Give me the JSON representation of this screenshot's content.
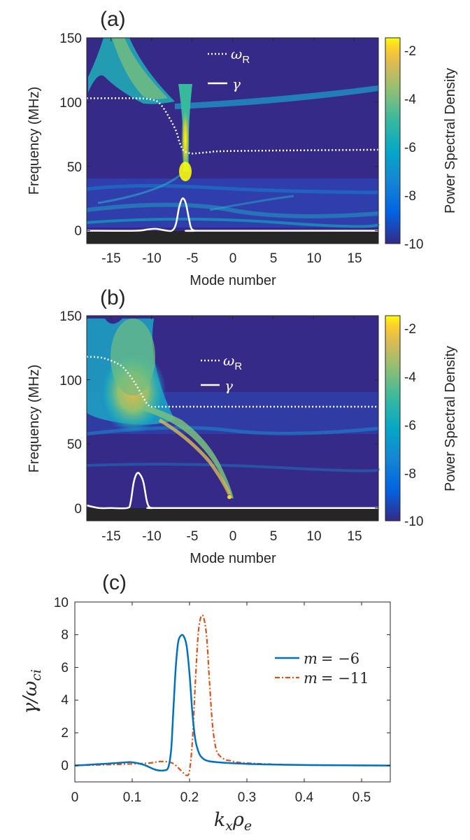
{
  "chart_data": [
    {
      "type": "heatmap",
      "panel_label": "(a)",
      "xlabel": "Mode number",
      "ylabel": "Frequency (MHz)",
      "xlim": [
        -18,
        18
      ],
      "ylim": [
        -10,
        150
      ],
      "xticks": [
        "-15",
        "-10",
        "-5",
        "0",
        "5",
        "10",
        "15"
      ],
      "yticks": [
        "0",
        "50",
        "100",
        "150"
      ],
      "colorbar": {
        "label": "Power Spectral Density",
        "range": [
          -10,
          -1.5
        ],
        "ticks": [
          "-2",
          "-4",
          "-6",
          "-8",
          "-10"
        ]
      },
      "legend": [
        {
          "name": "ω",
          "sub": "R",
          "style": "dotted"
        },
        {
          "name": "γ",
          "sub": "",
          "style": "solid"
        }
      ],
      "omega_R": {
        "x": [
          -18,
          -12,
          -10,
          -9,
          -8,
          -7,
          -6.5,
          -6,
          -5.5,
          -5,
          -3,
          0,
          18
        ],
        "y": [
          103,
          103,
          102,
          99,
          90,
          78,
          68,
          62,
          61,
          60,
          61,
          62,
          63
        ]
      },
      "gamma": {
        "x": [
          -18,
          -12,
          -10.5,
          -9.5,
          -8.5,
          -7.5,
          -7,
          -6.6,
          -6.2,
          -5.8,
          -5.4,
          -5.1,
          -4.6,
          -4,
          18
        ],
        "y": [
          0,
          0,
          1,
          1.5,
          0.5,
          0,
          5,
          18,
          25,
          22,
          10,
          2,
          0,
          0,
          0
        ]
      }
    },
    {
      "type": "heatmap",
      "panel_label": "(b)",
      "xlabel": "Mode number",
      "ylabel": "Frequency (MHz)",
      "xlim": [
        -18,
        18
      ],
      "ylim": [
        -10,
        150
      ],
      "xticks": [
        "-15",
        "-10",
        "-5",
        "0",
        "5",
        "10",
        "15"
      ],
      "yticks": [
        "0",
        "50",
        "100",
        "150"
      ],
      "colorbar": {
        "label": "Power Spectral Density",
        "range": [
          -10,
          -1.5
        ],
        "ticks": [
          "-2",
          "-4",
          "-6",
          "-8",
          "-10"
        ]
      },
      "legend": [
        {
          "name": "ω",
          "sub": "R",
          "style": "dotted"
        },
        {
          "name": "γ",
          "sub": "",
          "style": "solid"
        }
      ],
      "omega_R": {
        "x": [
          -18,
          -16,
          -14,
          -13,
          -12,
          -11,
          -10.5,
          -10,
          -9,
          -6,
          0,
          18
        ],
        "y": [
          118,
          117,
          112,
          106,
          97,
          86,
          81,
          79,
          79,
          79,
          79,
          79
        ]
      },
      "gamma": {
        "x": [
          -18,
          -16.5,
          -15,
          -13,
          -12.6,
          -12.2,
          -11.8,
          -11.4,
          -11,
          -10.6,
          -10.3,
          -9.8,
          -8,
          18
        ],
        "y": [
          2,
          0,
          0,
          0,
          4,
          20,
          27,
          26,
          20,
          6,
          1,
          0,
          0,
          0
        ]
      }
    },
    {
      "type": "line",
      "panel_label": "(c)",
      "xlabel_main": "k",
      "xlabel_sub1": "x",
      "xlabel_mid": "ρ",
      "xlabel_sub2": "e",
      "ylabel_main": "γ/ω",
      "ylabel_sub": "ci",
      "xlim": [
        0,
        0.55
      ],
      "ylim": [
        -1,
        10
      ],
      "xticks": [
        "0",
        "0.1",
        "0.2",
        "0.3",
        "0.4",
        "0.5"
      ],
      "yticks": [
        "0",
        "2",
        "4",
        "6",
        "8",
        "10"
      ],
      "series": [
        {
          "name": "m = −6",
          "var": "m",
          "eq": "= −6",
          "color": "#0072BD",
          "style": "solid",
          "x": [
            0,
            0.05,
            0.09,
            0.1,
            0.12,
            0.14,
            0.155,
            0.163,
            0.168,
            0.172,
            0.176,
            0.18,
            0.185,
            0.19,
            0.195,
            0.2,
            0.205,
            0.21,
            0.215,
            0.22,
            0.23,
            0.25,
            0.3,
            0.4,
            0.55
          ],
          "y": [
            0,
            0.1,
            0.2,
            0.2,
            0.05,
            -0.25,
            -0.3,
            -0.1,
            1.0,
            3.5,
            6.0,
            7.5,
            7.95,
            7.9,
            7.3,
            5.6,
            3.2,
            1.6,
            0.9,
            0.55,
            0.3,
            0.2,
            0.1,
            0.03,
            0
          ]
        },
        {
          "name": "m = −11",
          "var": "m",
          "eq": "= −11",
          "color": "#D95319",
          "style": "dashdot",
          "x": [
            0,
            0.05,
            0.1,
            0.13,
            0.15,
            0.17,
            0.185,
            0.195,
            0.2,
            0.205,
            0.21,
            0.215,
            0.22,
            0.225,
            0.23,
            0.235,
            0.24,
            0.245,
            0.25,
            0.26,
            0.27,
            0.3,
            0.4,
            0.55
          ],
          "y": [
            0,
            0.05,
            0.1,
            0.15,
            0.25,
            0.15,
            -0.3,
            -0.6,
            -0.3,
            1.5,
            5.0,
            8.0,
            9.1,
            9.0,
            7.8,
            5.0,
            2.5,
            1.2,
            0.7,
            0.4,
            0.3,
            0.15,
            0.03,
            0
          ]
        }
      ]
    }
  ]
}
